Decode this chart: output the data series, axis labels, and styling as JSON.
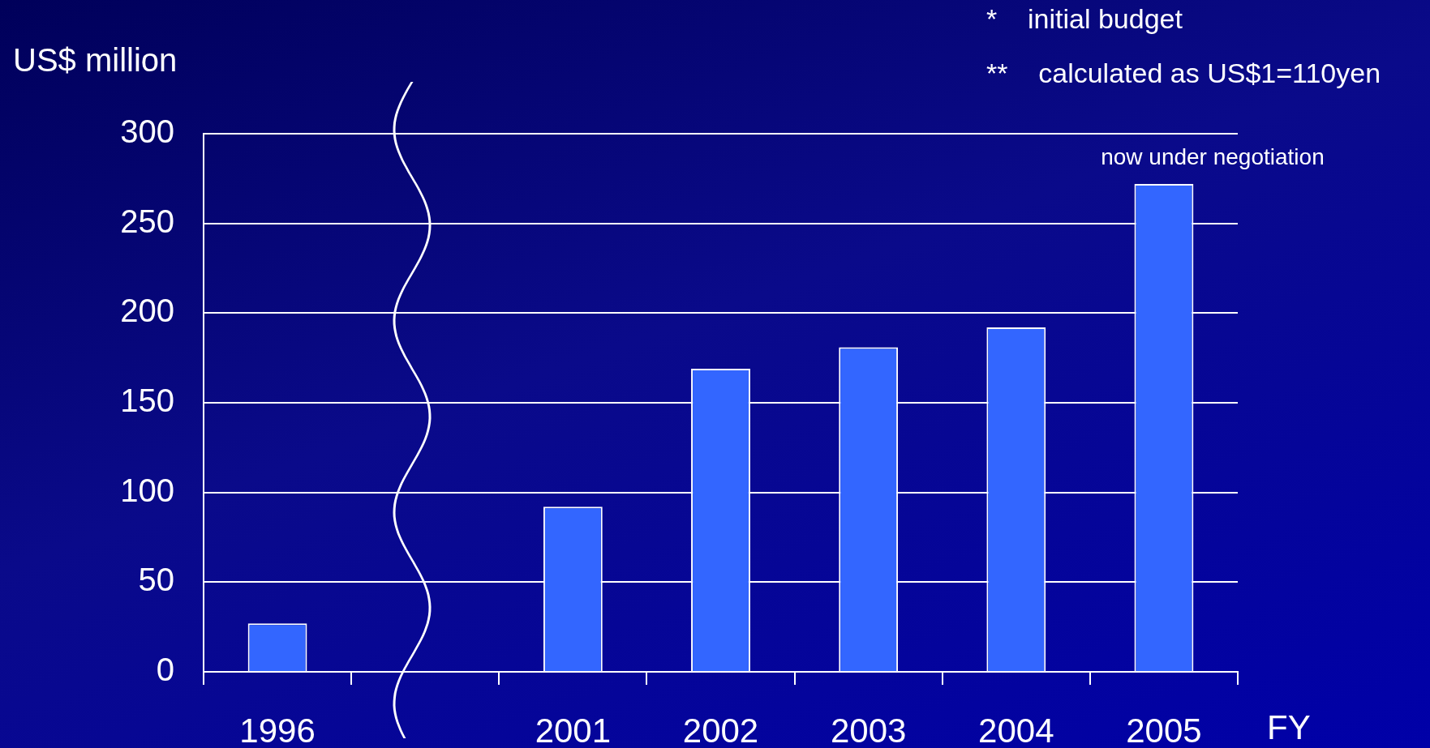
{
  "chart_data": {
    "type": "bar",
    "ylabel": "US$ million",
    "xlabel": "FY",
    "categories": [
      "1996",
      null,
      "2001",
      "2002",
      "2003",
      "2004",
      "2005"
    ],
    "values": [
      27,
      null,
      92,
      169,
      181,
      192,
      272
    ],
    "color": "#3366ff",
    "ylim": [
      0,
      300
    ],
    "yticks": [
      0,
      50,
      100,
      150,
      200,
      250,
      300
    ],
    "grid": "y",
    "annotations": [
      "*    initial budget",
      "**    calculated as US$1=110yen",
      {
        "text": "now under negotiation",
        "x": "2005",
        "y": 272
      }
    ]
  }
}
